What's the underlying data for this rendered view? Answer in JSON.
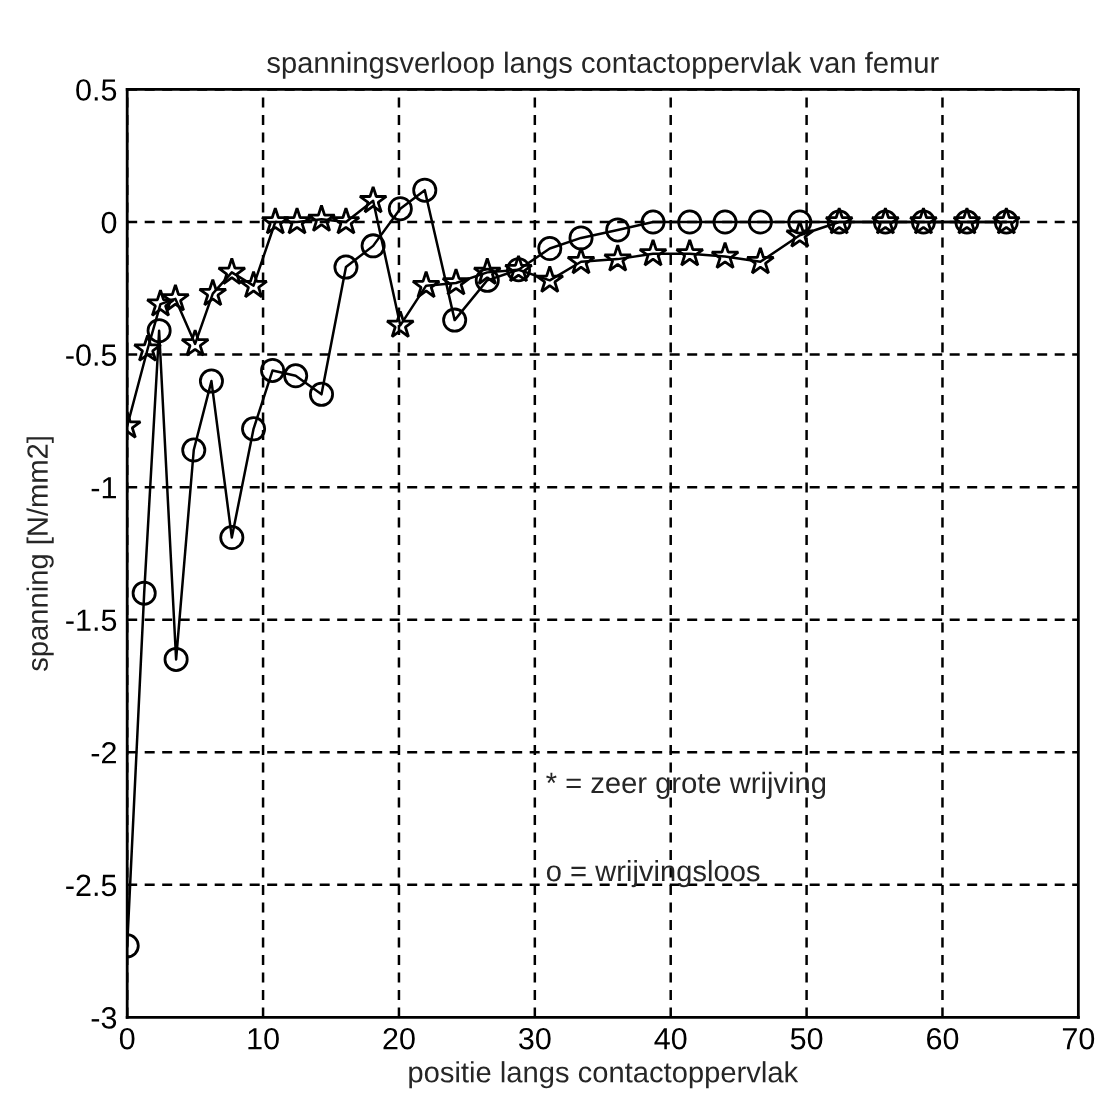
{
  "chart_data": {
    "type": "line",
    "title": "spanningsverloop langs contactoppervlak van femur",
    "xlabel": "positie langs contactoppervlak",
    "ylabel": "spanning [N/mm2]",
    "annotations": [
      "* = zeer grote wrijving",
      "o = wrijvingsloos"
    ],
    "xlim": [
      0,
      70
    ],
    "xticks": [
      0,
      10,
      20,
      30,
      40,
      50,
      60,
      70
    ],
    "ylim": [
      -3,
      0.5
    ],
    "yticks": [
      -3,
      -2.5,
      -2,
      -1.5,
      -1,
      -0.5,
      0,
      0.5
    ],
    "grid": true,
    "legend": false,
    "line_style": "solid",
    "series": [
      {
        "color": "#000000",
        "marker": "star",
        "x": [
          0,
          1.5,
          2.45,
          3.55,
          5.0,
          6.3,
          7.7,
          9.3,
          10.9,
          12.5,
          14.3,
          16.1,
          18.1,
          20.1,
          22.0,
          24.2,
          26.5,
          28.8,
          31.1,
          33.4,
          36.1,
          38.7,
          41.4,
          44.0,
          46.6,
          49.5,
          52.4,
          55.8,
          58.6,
          61.8,
          64.7
        ],
        "values": [
          -0.77,
          -0.48,
          -0.31,
          -0.29,
          -0.46,
          -0.27,
          -0.19,
          -0.24,
          0,
          0,
          0.01,
          0,
          0.08,
          -0.39,
          -0.24,
          -0.23,
          -0.19,
          -0.18,
          -0.22,
          -0.15,
          -0.14,
          -0.12,
          -0.12,
          -0.13,
          -0.15,
          -0.05,
          0,
          0,
          0,
          0,
          0
        ]
      },
      {
        "color": "#000000",
        "marker": "circle",
        "x": [
          0,
          1.25,
          2.35,
          3.6,
          4.9,
          6.2,
          7.7,
          9.3,
          10.7,
          12.4,
          14.3,
          16.1,
          18.1,
          20.1,
          21.9,
          24.1,
          26.5,
          28.8,
          31.1,
          33.4,
          36.1,
          38.7,
          41.4,
          44.0,
          46.6,
          49.5,
          52.4,
          55.8,
          58.6,
          61.8,
          64.7
        ],
        "values": [
          -2.73,
          -1.4,
          -0.41,
          -1.65,
          -0.86,
          -0.6,
          -1.19,
          -0.78,
          -0.56,
          -0.58,
          -0.65,
          -0.17,
          -0.09,
          0.05,
          0.12,
          -0.37,
          -0.22,
          -0.18,
          -0.1,
          -0.06,
          -0.03,
          0,
          0,
          0,
          0,
          0,
          0,
          0,
          0,
          0,
          0
        ]
      }
    ]
  }
}
